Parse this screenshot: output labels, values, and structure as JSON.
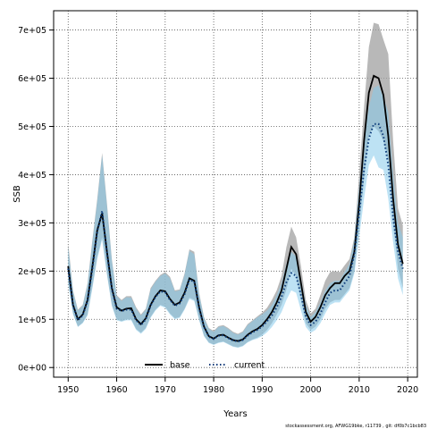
{
  "chart_data": {
    "type": "area",
    "xlabel": "Years",
    "ylabel": "SSB",
    "xlim": [
      1947,
      2022
    ],
    "ylim": [
      -20000,
      740000
    ],
    "x_ticks": [
      1950,
      1960,
      1970,
      1980,
      1990,
      2000,
      2010,
      2020
    ],
    "y_ticks": [
      0,
      100000,
      200000,
      300000,
      400000,
      500000,
      600000,
      700000
    ],
    "y_tick_labels": [
      "0e+00",
      "1e+05",
      "2e+05",
      "3e+05",
      "4e+05",
      "5e+05",
      "6e+05",
      "7e+05"
    ],
    "grid": true,
    "legend_position": "bottom-center",
    "footnote": "stockassessment.org, AFWG19bke, r11739 , git: df0b7c1bcb83",
    "x": [
      1950,
      1951,
      1952,
      1953,
      1954,
      1955,
      1956,
      1957,
      1958,
      1959,
      1960,
      1961,
      1962,
      1963,
      1964,
      1965,
      1966,
      1967,
      1968,
      1969,
      1970,
      1971,
      1972,
      1973,
      1974,
      1975,
      1976,
      1977,
      1978,
      1979,
      1980,
      1981,
      1982,
      1983,
      1984,
      1985,
      1986,
      1987,
      1988,
      1989,
      1990,
      1991,
      1992,
      1993,
      1994,
      1995,
      1996,
      1997,
      1998,
      1999,
      2000,
      2001,
      2002,
      2003,
      2004,
      2005,
      2006,
      2007,
      2008,
      2009,
      2010,
      2011,
      2012,
      2013,
      2014,
      2015,
      2016,
      2017,
      2018,
      2019
    ],
    "series": [
      {
        "name": "base",
        "color": "#000000",
        "band_color": "#a0a0a0",
        "line_style": "solid",
        "values": [
          210000,
          130000,
          100000,
          110000,
          140000,
          210000,
          285000,
          320000,
          240000,
          165000,
          125000,
          118000,
          122000,
          123000,
          100000,
          90000,
          102000,
          130000,
          148000,
          160000,
          158000,
          142000,
          130000,
          135000,
          155000,
          185000,
          180000,
          125000,
          85000,
          65000,
          60000,
          67000,
          68000,
          62000,
          57000,
          55000,
          58000,
          68000,
          75000,
          80000,
          88000,
          100000,
          115000,
          135000,
          160000,
          205000,
          250000,
          235000,
          175000,
          115000,
          95000,
          105000,
          125000,
          150000,
          165000,
          175000,
          175000,
          190000,
          200000,
          240000,
          340000,
          470000,
          570000,
          605000,
          600000,
          565000,
          480000,
          350000,
          255000,
          215000
        ],
        "upper": [
          258000,
          160000,
          120000,
          130000,
          175000,
          265000,
          350000,
          445000,
          340000,
          225000,
          150000,
          140000,
          148000,
          148000,
          125000,
          110000,
          122000,
          165000,
          180000,
          192000,
          198000,
          188000,
          160000,
          162000,
          195000,
          245000,
          240000,
          155000,
          105000,
          82000,
          76000,
          86000,
          88000,
          82000,
          74000,
          70000,
          75000,
          90000,
          98000,
          106000,
          114000,
          124000,
          140000,
          160000,
          190000,
          250000,
          292000,
          270000,
          210000,
          140000,
          112000,
          122000,
          150000,
          180000,
          198000,
          200000,
          198000,
          212000,
          225000,
          270000,
          400000,
          540000,
          665000,
          715000,
          712000,
          680000,
          650000,
          470000,
          330000,
          295000
        ],
        "lower": [
          178000,
          112000,
          85000,
          93000,
          110000,
          168000,
          230000,
          270000,
          195000,
          130000,
          100000,
          96000,
          100000,
          100000,
          80000,
          72000,
          82000,
          105000,
          120000,
          130000,
          126000,
          112000,
          102000,
          105000,
          122000,
          145000,
          140000,
          100000,
          66000,
          52000,
          48000,
          52000,
          54000,
          49000,
          44000,
          42000,
          45000,
          53000,
          58000,
          62000,
          68000,
          78000,
          92000,
          110000,
          130000,
          162000,
          205000,
          190000,
          140000,
          92000,
          78000,
          85000,
          100000,
          122000,
          135000,
          140000,
          140000,
          152000,
          165000,
          200000,
          290000,
          390000,
          480000,
          500000,
          490000,
          470000,
          430000,
          300000,
          205000,
          165000
        ]
      },
      {
        "name": "current",
        "color": "#0b3a7a",
        "band_color": "#87cbeb",
        "line_style": "dotted",
        "values": [
          205000,
          128000,
          98000,
          108000,
          138000,
          205000,
          282000,
          325000,
          238000,
          162000,
          122000,
          117000,
          120000,
          120000,
          98000,
          88000,
          100000,
          128000,
          146000,
          158000,
          156000,
          140000,
          128000,
          133000,
          152000,
          182000,
          178000,
          123000,
          84000,
          64000,
          59000,
          66000,
          67000,
          61000,
          56000,
          54000,
          57000,
          66000,
          73000,
          78000,
          85000,
          96000,
          108000,
          125000,
          147000,
          177000,
          196000,
          190000,
          150000,
          105000,
          88000,
          95000,
          112000,
          135000,
          155000,
          160000,
          160000,
          175000,
          190000,
          235000,
          320000,
          410000,
          475000,
          505000,
          505000,
          480000,
          420000,
          310000,
          240000,
          205000
        ],
        "upper": [
          250000,
          158000,
          118000,
          128000,
          172000,
          260000,
          345000,
          440000,
          335000,
          222000,
          148000,
          138000,
          146000,
          145000,
          122000,
          108000,
          120000,
          162000,
          178000,
          190000,
          195000,
          185000,
          158000,
          160000,
          192000,
          242000,
          235000,
          152000,
          103000,
          80000,
          74000,
          84000,
          86000,
          80000,
          72000,
          68000,
          73000,
          88000,
          96000,
          104000,
          110000,
          118000,
          130000,
          150000,
          175000,
          215000,
          240000,
          230000,
          185000,
          130000,
          105000,
          115000,
          135000,
          160000,
          175000,
          180000,
          180000,
          198000,
          215000,
          265000,
          375000,
          475000,
          540000,
          580000,
          585000,
          560000,
          530000,
          400000,
          300000,
          270000
        ],
        "lower": [
          172000,
          110000,
          84000,
          92000,
          108000,
          165000,
          225000,
          265000,
          192000,
          128000,
          98000,
          95000,
          98000,
          98000,
          78000,
          70000,
          80000,
          103000,
          118000,
          128000,
          124000,
          110000,
          100000,
          103000,
          120000,
          142000,
          138000,
          98000,
          65000,
          51000,
          47000,
          51000,
          53000,
          48000,
          43000,
          41000,
          44000,
          52000,
          57000,
          60000,
          65000,
          73000,
          84000,
          98000,
          115000,
          140000,
          160000,
          155000,
          118000,
          84000,
          72000,
          78000,
          92000,
          112000,
          130000,
          135000,
          135000,
          148000,
          160000,
          195000,
          270000,
          350000,
          420000,
          440000,
          415000,
          410000,
          350000,
          260000,
          185000,
          150000
        ]
      }
    ]
  }
}
